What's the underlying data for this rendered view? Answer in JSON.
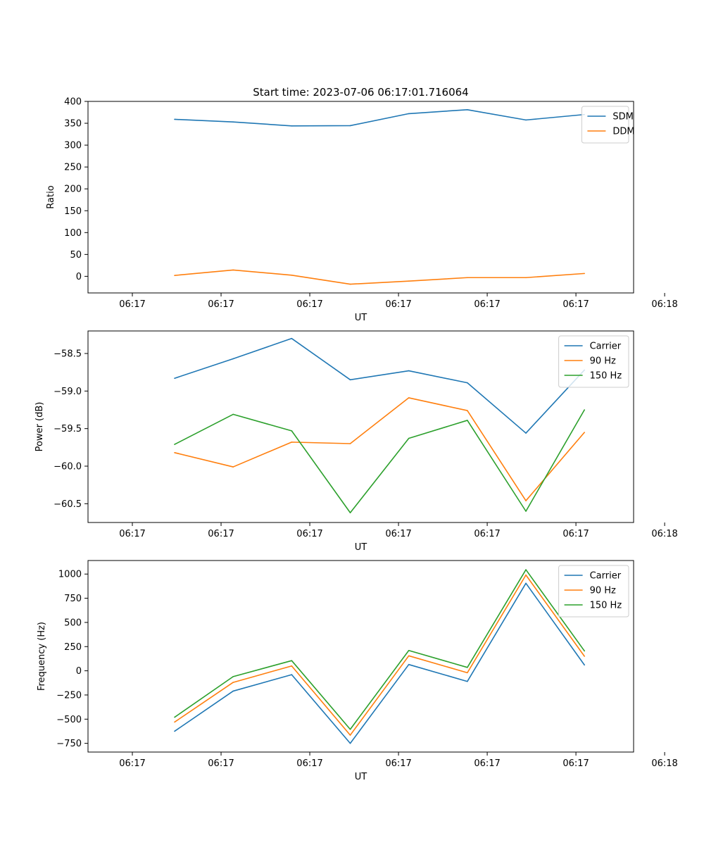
{
  "figure_title": "Start time: 2023-07-06 06:17:01.716064",
  "chart_data": [
    {
      "type": "line",
      "title": "Start time: 2023-07-06 06:17:01.716064",
      "xlabel": "UT",
      "ylabel": "Ratio",
      "x": [
        0.476,
        1.136,
        1.796,
        2.456,
        3.116,
        3.776,
        4.436,
        5.096
      ],
      "xlim": [
        -0.5,
        5.65
      ],
      "xticks": [
        0,
        1,
        2,
        3,
        4,
        5,
        6
      ],
      "xtick_labels": [
        "06:17",
        "06:17",
        "06:17",
        "06:17",
        "06:17",
        "06:17",
        "06:18"
      ],
      "ylim": [
        -38,
        400
      ],
      "yticks": [
        0,
        50,
        100,
        150,
        200,
        250,
        300,
        350,
        400
      ],
      "ytick_labels": [
        "0",
        "50",
        "100",
        "150",
        "200",
        "250",
        "300",
        "350",
        "400"
      ],
      "legend_position": "top-right",
      "series": [
        {
          "name": "SDM",
          "color": "#1f77b4",
          "values": [
            359,
            353,
            344,
            344.5,
            372,
            381,
            357.5,
            370
          ]
        },
        {
          "name": "DDM",
          "color": "#ff7f0e",
          "values": [
            2,
            14.5,
            2.5,
            -18,
            -11,
            -3,
            -3,
            6.5
          ]
        }
      ]
    },
    {
      "type": "line",
      "title": "",
      "xlabel": "UT",
      "ylabel": "Power (dB)",
      "x": [
        0.476,
        1.136,
        1.796,
        2.456,
        3.116,
        3.776,
        4.436,
        5.096
      ],
      "xlim": [
        -0.5,
        5.65
      ],
      "xticks": [
        0,
        1,
        2,
        3,
        4,
        5,
        6
      ],
      "xtick_labels": [
        "06:17",
        "06:17",
        "06:17",
        "06:17",
        "06:17",
        "06:17",
        "06:18"
      ],
      "ylim": [
        -60.75,
        -58.2
      ],
      "yticks": [
        -58.5,
        -59.0,
        -59.5,
        -60.0,
        -60.5
      ],
      "ytick_labels": [
        "−58.5",
        "−59.0",
        "−59.5",
        "−60.0",
        "−60.5"
      ],
      "legend_position": "top-right",
      "series": [
        {
          "name": "Carrier",
          "color": "#1f77b4",
          "values": [
            -58.83,
            -58.57,
            -58.3,
            -58.85,
            -58.73,
            -58.89,
            -59.56,
            -58.72
          ]
        },
        {
          "name": "90 Hz",
          "color": "#ff7f0e",
          "values": [
            -59.82,
            -60.01,
            -59.68,
            -59.7,
            -59.09,
            -59.26,
            -60.46,
            -59.55
          ]
        },
        {
          "name": "150 Hz",
          "color": "#2ca02c",
          "values": [
            -59.71,
            -59.31,
            -59.53,
            -60.62,
            -59.63,
            -59.39,
            -60.6,
            -59.25
          ]
        }
      ]
    },
    {
      "type": "line",
      "title": "",
      "xlabel": "UT",
      "ylabel": "Frequency (Hz)",
      "x": [
        0.476,
        1.136,
        1.796,
        2.456,
        3.116,
        3.776,
        4.436,
        5.096
      ],
      "xlim": [
        -0.5,
        5.65
      ],
      "xticks": [
        0,
        1,
        2,
        3,
        4,
        5,
        6
      ],
      "xtick_labels": [
        "06:17",
        "06:17",
        "06:17",
        "06:17",
        "06:17",
        "06:17",
        "06:18"
      ],
      "ylim": [
        -840,
        1140
      ],
      "yticks": [
        1000,
        750,
        500,
        250,
        0,
        -250,
        -500,
        -750
      ],
      "ytick_labels": [
        "1000",
        "750",
        "500",
        "250",
        "0",
        "−250",
        "−500",
        "−750"
      ],
      "legend_position": "top-right",
      "series": [
        {
          "name": "Carrier",
          "color": "#1f77b4",
          "values": [
            -625,
            -210,
            -40,
            -750,
            65,
            -110,
            905,
            60
          ]
        },
        {
          "name": "90 Hz",
          "color": "#ff7f0e",
          "values": [
            -530,
            -120,
            50,
            -665,
            155,
            -20,
            990,
            150
          ]
        },
        {
          "name": "150 Hz",
          "color": "#2ca02c",
          "values": [
            -480,
            -60,
            105,
            -605,
            210,
            35,
            1045,
            205
          ]
        }
      ]
    }
  ]
}
